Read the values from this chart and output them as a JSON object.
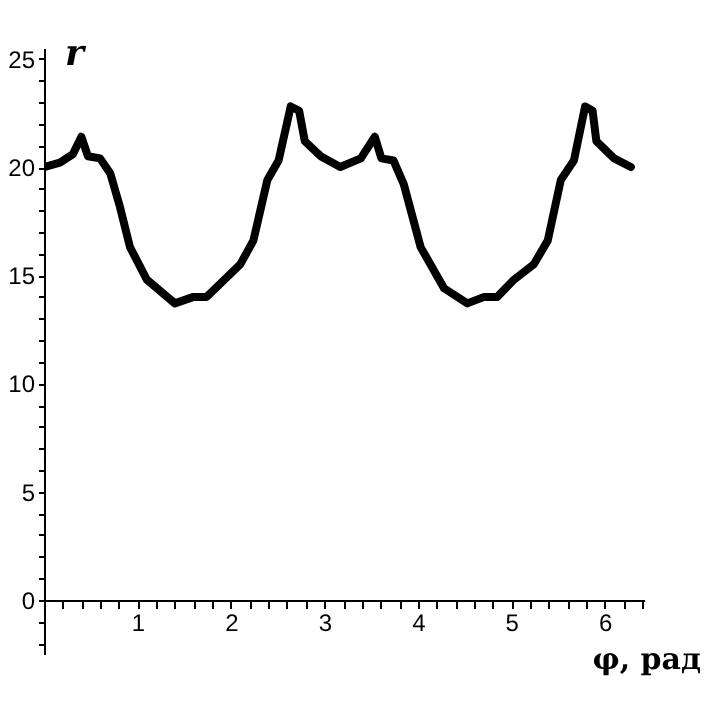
{
  "chart_data": {
    "type": "line",
    "xlabel": "φ, рад",
    "ylabel": "r",
    "x": [
      0,
      0.17,
      0.31,
      0.4,
      0.47,
      0.6,
      0.71,
      0.81,
      0.92,
      1.1,
      1.4,
      1.6,
      1.74,
      2.1,
      2.24,
      2.39,
      2.51,
      2.64,
      2.73,
      2.79,
      2.96,
      3.17,
      3.39,
      3.54,
      3.61,
      3.74,
      3.85,
      4.03,
      4.28,
      4.53,
      4.71,
      4.85,
      5.03,
      5.24,
      5.39,
      5.53,
      5.67,
      5.79,
      5.87,
      5.91,
      6.1,
      6.28
    ],
    "series": [
      {
        "color": "#000000",
        "values": [
          20,
          20.2,
          20.6,
          21.4,
          20.5,
          20.4,
          19.7,
          18.2,
          16.3,
          14.8,
          13.7,
          14.0,
          14.0,
          15.5,
          16.6,
          19.4,
          20.3,
          22.8,
          22.6,
          21.2,
          20.5,
          20,
          20.4,
          21.4,
          20.4,
          20.3,
          19.2,
          16.3,
          14.4,
          13.7,
          14.0,
          14.0,
          14.8,
          15.5,
          16.6,
          19.4,
          20.3,
          22.8,
          22.6,
          21.2,
          20.4,
          20
        ]
      }
    ],
    "xlim": [
      0,
      6.42
    ],
    "ylim": [
      -2.5,
      25.5
    ],
    "xticks": [
      {
        "value": 0.2,
        "label": null
      },
      {
        "value": 0.4,
        "label": null
      },
      {
        "value": 0.6,
        "label": null
      },
      {
        "value": 0.8,
        "label": null
      },
      1,
      {
        "value": 1.2,
        "label": null
      },
      {
        "value": 1.4,
        "label": null
      },
      {
        "value": 1.6,
        "label": null
      },
      {
        "value": 1.8,
        "label": null
      },
      2,
      {
        "value": 2.2,
        "label": null
      },
      {
        "value": 2.4,
        "label": null
      },
      {
        "value": 2.6,
        "label": null
      },
      {
        "value": 2.8,
        "label": null
      },
      3,
      {
        "value": 3.2,
        "label": null
      },
      {
        "value": 3.4,
        "label": null
      },
      {
        "value": 3.6,
        "label": null
      },
      {
        "value": 3.8,
        "label": null
      },
      4,
      {
        "value": 4.2,
        "label": null
      },
      {
        "value": 4.4,
        "label": null
      },
      {
        "value": 4.6,
        "label": null
      },
      {
        "value": 4.8,
        "label": null
      },
      5,
      {
        "value": 5.2,
        "label": null
      },
      {
        "value": 5.4,
        "label": null
      },
      {
        "value": 5.6,
        "label": null
      },
      {
        "value": 5.8,
        "label": null
      },
      6,
      {
        "value": 6.2,
        "label": null
      },
      {
        "value": 6.4,
        "label": null
      }
    ],
    "yticks": [
      {
        "value": -2,
        "label": null
      },
      {
        "value": -1,
        "label": null
      },
      0,
      {
        "value": 1,
        "label": null
      },
      {
        "value": 2,
        "label": null
      },
      {
        "value": 3,
        "label": null
      },
      {
        "value": 4,
        "label": null
      },
      5,
      {
        "value": 6,
        "label": null
      },
      {
        "value": 7,
        "label": null
      },
      {
        "value": 8,
        "label": null
      },
      {
        "value": 9,
        "label": null
      },
      10,
      {
        "value": 11,
        "label": null
      },
      {
        "value": 12,
        "label": null
      },
      {
        "value": 13,
        "label": null
      },
      {
        "value": 14,
        "label": null
      },
      15,
      {
        "value": 16,
        "label": null
      },
      {
        "value": 17,
        "label": null
      },
      {
        "value": 18,
        "label": null
      },
      {
        "value": 19,
        "label": null
      },
      20,
      {
        "value": 21,
        "label": null
      },
      {
        "value": 22,
        "label": null
      },
      {
        "value": 23,
        "label": null
      },
      {
        "value": 24,
        "label": null
      },
      25
    ],
    "grid": false,
    "marker": "none",
    "line_style": "solid"
  }
}
